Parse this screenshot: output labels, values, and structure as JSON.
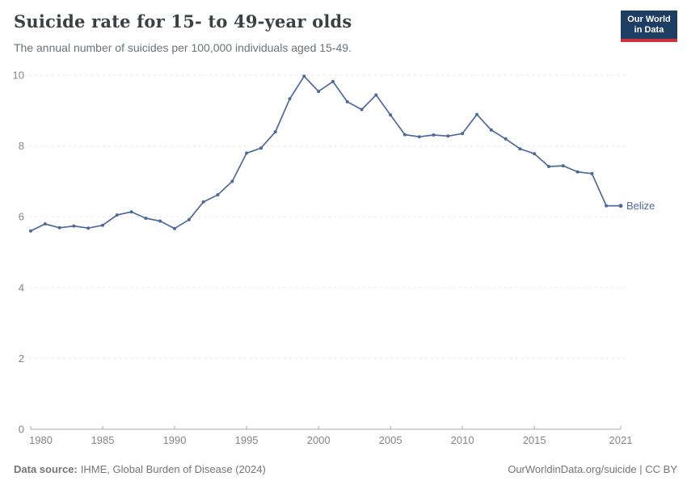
{
  "header": {
    "title": "Suicide rate for 15- to 49-year olds",
    "subtitle": "The annual number of suicides per 100,000 individuals aged 15-49."
  },
  "logo": {
    "line1": "Our World",
    "line2": "in Data"
  },
  "footer": {
    "source_label": "Data source:",
    "source_text": "IHME, Global Burden of Disease (2024)",
    "credit": "OurWorldinData.org/suicide | CC BY"
  },
  "colors": {
    "series_line": "#4c6a9e",
    "series_label": "#4c6a9e",
    "grid": "#e2e2e2",
    "axis": "#a8a8a8",
    "tick_text": "#858585",
    "title": "#3b4045",
    "subtitle": "#6d7377",
    "footer": "#757575",
    "logo_bg": "#1d3d63",
    "logo_red": "#d13239"
  },
  "chart_data": {
    "type": "line",
    "title": "Suicide rate for 15- to 49-year olds",
    "subtitle": "The annual number of suicides per 100,000 individuals aged 15-49.",
    "xlabel": "",
    "ylabel": "",
    "xlim": [
      1980,
      2021
    ],
    "ylim": [
      0,
      10
    ],
    "x_ticks": [
      1980,
      1985,
      1990,
      1995,
      2000,
      2005,
      2010,
      2015,
      2021
    ],
    "y_ticks": [
      0,
      2,
      4,
      6,
      8,
      10
    ],
    "grid": "horizontal-dashed",
    "legend": "end-of-line-label",
    "series": [
      {
        "name": "Belize",
        "color": "#4c6a9e",
        "x": [
          1980,
          1981,
          1982,
          1983,
          1984,
          1985,
          1986,
          1987,
          1988,
          1989,
          1990,
          1991,
          1992,
          1993,
          1994,
          1995,
          1996,
          1997,
          1998,
          1999,
          2000,
          2001,
          2002,
          2003,
          2004,
          2005,
          2006,
          2007,
          2008,
          2009,
          2010,
          2011,
          2012,
          2013,
          2014,
          2015,
          2016,
          2017,
          2018,
          2019,
          2020,
          2021
        ],
        "values": [
          5.6,
          5.8,
          5.69,
          5.74,
          5.68,
          5.76,
          6.05,
          6.14,
          5.96,
          5.88,
          5.67,
          5.92,
          6.42,
          6.62,
          7.0,
          7.8,
          7.94,
          8.4,
          9.33,
          9.97,
          9.54,
          9.82,
          9.25,
          9.03,
          9.44,
          8.88,
          8.32,
          8.26,
          8.31,
          8.28,
          8.35,
          8.89,
          8.45,
          8.2,
          7.92,
          7.78,
          7.42,
          7.44,
          7.27,
          7.22,
          6.31,
          6.31
        ]
      }
    ]
  }
}
